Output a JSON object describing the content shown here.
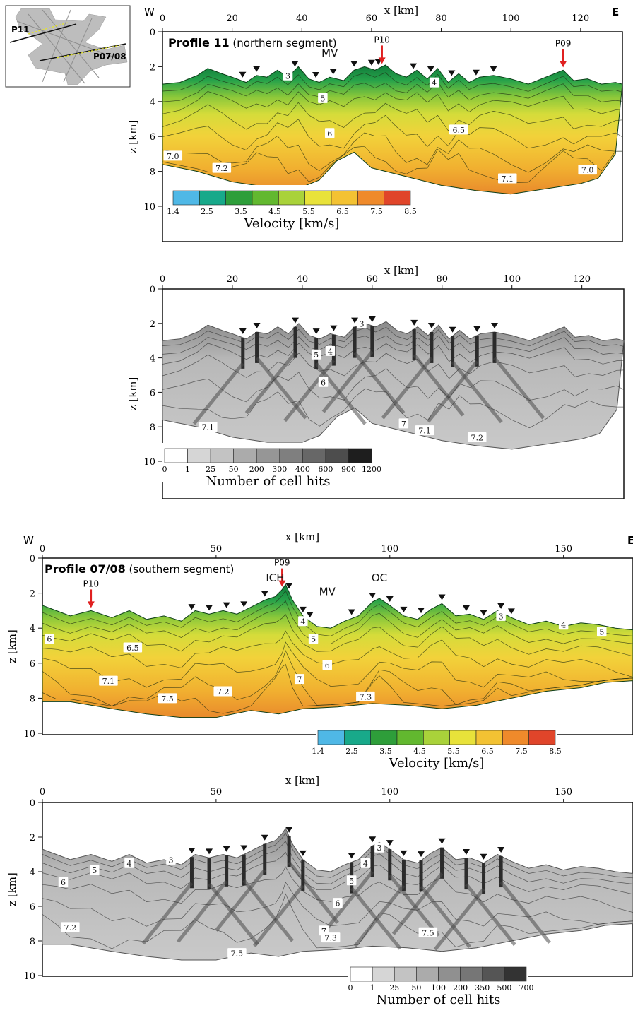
{
  "chart_data": [
    {
      "type": "heatmap",
      "name": "inset-map",
      "labels": [
        "P11",
        "P07/08"
      ]
    },
    {
      "type": "heatmap",
      "title": "Profile 11",
      "subtitle": "(northern segment)",
      "xlabel": "x [km]",
      "ylabel": "z [km]",
      "xlim": [
        0,
        132
      ],
      "ylim": [
        0,
        12
      ],
      "xticks": [
        0,
        20,
        40,
        60,
        80,
        100,
        120
      ],
      "yticks": [
        0,
        2,
        4,
        6,
        8,
        10
      ],
      "west_label": "W",
      "east_label": "E",
      "annotations": [
        "MV"
      ],
      "arrows": [
        {
          "label": "P10",
          "x": 63
        },
        {
          "label": "P09",
          "x": 115
        }
      ],
      "stations_x": [
        23,
        27,
        38,
        44,
        49,
        55,
        60,
        62,
        72,
        77,
        83,
        90,
        95
      ],
      "topography": {
        "x": [
          0,
          5,
          10,
          13,
          17,
          20,
          24,
          27,
          30,
          33,
          36,
          39,
          42,
          45,
          48,
          52,
          55,
          58,
          61,
          64,
          67,
          70,
          73,
          76,
          79,
          82,
          85,
          88,
          91,
          95,
          100,
          105,
          110,
          115,
          118,
          122,
          126,
          130,
          132
        ],
        "z": [
          3.0,
          2.9,
          2.5,
          2.1,
          2.4,
          2.6,
          2.9,
          2.5,
          2.6,
          2.2,
          2.6,
          2.0,
          2.7,
          2.9,
          2.6,
          2.8,
          2.2,
          2.0,
          2.2,
          1.9,
          2.4,
          2.6,
          2.2,
          2.7,
          2.1,
          2.9,
          2.4,
          2.9,
          2.6,
          2.5,
          2.7,
          3.0,
          2.6,
          2.2,
          2.8,
          2.7,
          3.0,
          2.9,
          3.0
        ]
      },
      "bottom": {
        "x": [
          0,
          10,
          20,
          30,
          40,
          45,
          50,
          55,
          60,
          70,
          80,
          90,
          100,
          110,
          120,
          125,
          130
        ],
        "z": [
          7.6,
          8.0,
          8.6,
          8.9,
          8.9,
          8.5,
          7.4,
          6.9,
          7.8,
          8.3,
          8.8,
          9.1,
          9.3,
          9.0,
          8.7,
          8.4,
          7.0
        ]
      },
      "contour_labels": [
        {
          "text": "3",
          "x": 36,
          "z": 2.5
        },
        {
          "text": "4",
          "x": 78,
          "z": 2.9
        },
        {
          "text": "5",
          "x": 46,
          "z": 3.8
        },
        {
          "text": "6",
          "x": 48,
          "z": 5.8
        },
        {
          "text": "6.5",
          "x": 85,
          "z": 5.6
        },
        {
          "text": "7.0",
          "x": 3,
          "z": 7.1
        },
        {
          "text": "7.2",
          "x": 17,
          "z": 7.8
        },
        {
          "text": "7.1",
          "x": 99,
          "z": 8.4
        },
        {
          "text": "7.0",
          "x": 122,
          "z": 7.9
        }
      ],
      "colorbar": {
        "label": "Velocity [km/s]",
        "ticks": [
          1.4,
          2.5,
          3.5,
          4.5,
          5.5,
          6.5,
          7.5,
          8.5
        ],
        "colors": [
          "#4fb8e6",
          "#18a98a",
          "#2e9e3a",
          "#62b82f",
          "#a9d23a",
          "#e8e23a",
          "#f3c233",
          "#ef8a2b",
          "#e0452a"
        ]
      }
    },
    {
      "type": "heatmap",
      "title": "",
      "xlabel": "x [km]",
      "ylabel": "z [km]",
      "xlim": [
        0,
        132
      ],
      "ylim": [
        0,
        12
      ],
      "xticks": [
        0,
        20,
        40,
        60,
        80,
        100,
        120
      ],
      "yticks": [
        0,
        2,
        4,
        6,
        8,
        10
      ],
      "stations_x": [
        23,
        27,
        38,
        44,
        49,
        55,
        60,
        72,
        77,
        83,
        90,
        95
      ],
      "contour_labels": [
        {
          "text": "3",
          "x": 57,
          "z": 2.0
        },
        {
          "text": "5",
          "x": 44,
          "z": 3.8
        },
        {
          "text": "4",
          "x": 48,
          "z": 3.6
        },
        {
          "text": "6",
          "x": 46,
          "z": 5.4
        },
        {
          "text": "7.1",
          "x": 13,
          "z": 8.0
        },
        {
          "text": "7",
          "x": 69,
          "z": 7.8
        },
        {
          "text": "7.1",
          "x": 75,
          "z": 8.2
        },
        {
          "text": "7.2",
          "x": 90,
          "z": 8.6
        }
      ],
      "colorbar": {
        "label": "Number of cell hits",
        "ticks": [
          "0",
          "1",
          "25",
          "50",
          "200",
          "300",
          "400",
          "600",
          "900",
          "1200"
        ],
        "colors": [
          "#ffffff",
          "#d6d6d6",
          "#c3c3c3",
          "#ababab",
          "#969696",
          "#7f7f7f",
          "#676767",
          "#4d4d4d",
          "#1e1e1e"
        ]
      }
    },
    {
      "type": "heatmap",
      "title": "Profile 07/08",
      "subtitle": "(southern segment)",
      "xlabel": "x [km]",
      "ylabel": "z [km]",
      "xlim": [
        0,
        170
      ],
      "ylim": [
        0,
        10
      ],
      "xticks": [
        0,
        50,
        100,
        150
      ],
      "yticks": [
        0,
        2,
        4,
        6,
        8,
        10
      ],
      "west_label": "W",
      "east_label": "E",
      "annotations": [
        "ICH",
        "MV",
        "OC"
      ],
      "arrows": [
        {
          "label": "P10",
          "x": 14
        },
        {
          "label": "P09",
          "x": 69
        }
      ],
      "stations_x": [
        43,
        48,
        53,
        58,
        64,
        71,
        75,
        77,
        89,
        95,
        100,
        104,
        109,
        115,
        122,
        127,
        132,
        135
      ],
      "topography": {
        "x": [
          0,
          4,
          8,
          14,
          20,
          25,
          30,
          35,
          40,
          44,
          48,
          52,
          56,
          60,
          64,
          67,
          69,
          70,
          72,
          75,
          79,
          83,
          87,
          91,
          95,
          97,
          100,
          104,
          108,
          112,
          115,
          119,
          123,
          127,
          131,
          135,
          140,
          145,
          150,
          155,
          160,
          165,
          170
        ],
        "z": [
          2.7,
          3.0,
          3.3,
          3.0,
          3.4,
          3.0,
          3.5,
          3.3,
          3.6,
          3.0,
          3.2,
          3.0,
          3.2,
          2.8,
          2.4,
          2.2,
          1.8,
          1.5,
          2.4,
          3.3,
          3.9,
          4.0,
          3.6,
          3.3,
          2.5,
          2.3,
          2.7,
          3.3,
          3.5,
          2.9,
          2.6,
          3.3,
          3.2,
          3.5,
          3.0,
          3.4,
          3.8,
          3.6,
          3.9,
          3.7,
          3.8,
          4.0,
          4.1
        ]
      },
      "bottom": {
        "x": [
          8,
          20,
          30,
          40,
          50,
          60,
          68,
          75,
          85,
          95,
          105,
          115,
          125,
          135,
          145,
          155,
          162,
          170
        ],
        "z": [
          8.2,
          8.6,
          8.9,
          9.1,
          9.1,
          8.7,
          8.9,
          8.6,
          8.5,
          8.3,
          8.4,
          8.6,
          8.4,
          8.0,
          7.6,
          7.4,
          7.1,
          7.0
        ]
      },
      "contour_labels": [
        {
          "text": "6",
          "x": 2,
          "z": 4.6
        },
        {
          "text": "6.5",
          "x": 26,
          "z": 5.1
        },
        {
          "text": "4",
          "x": 75,
          "z": 3.6
        },
        {
          "text": "5",
          "x": 78,
          "z": 4.6
        },
        {
          "text": "6",
          "x": 82,
          "z": 6.1
        },
        {
          "text": "7",
          "x": 74,
          "z": 6.9
        },
        {
          "text": "7.1",
          "x": 19,
          "z": 7.0
        },
        {
          "text": "7.2",
          "x": 52,
          "z": 7.6
        },
        {
          "text": "7.5",
          "x": 36,
          "z": 8.0
        },
        {
          "text": "7.3",
          "x": 93,
          "z": 7.9
        },
        {
          "text": "3",
          "x": 132,
          "z": 3.3
        },
        {
          "text": "4",
          "x": 150,
          "z": 3.8
        },
        {
          "text": "5",
          "x": 161,
          "z": 4.2
        }
      ],
      "colorbar": {
        "label": "Velocity [km/s]",
        "ticks": [
          1.4,
          2.5,
          3.5,
          4.5,
          5.5,
          6.5,
          7.5,
          8.5
        ],
        "colors": [
          "#4fb8e6",
          "#18a98a",
          "#2e9e3a",
          "#62b82f",
          "#a9d23a",
          "#e8e23a",
          "#f3c233",
          "#ef8a2b",
          "#e0452a"
        ]
      }
    },
    {
      "type": "heatmap",
      "title": "",
      "xlabel": "x [km]",
      "ylabel": "z [km]",
      "xlim": [
        0,
        170
      ],
      "ylim": [
        0,
        10
      ],
      "xticks": [
        0,
        50,
        100,
        150
      ],
      "yticks": [
        0,
        2,
        4,
        6,
        8,
        10
      ],
      "stations_x": [
        43,
        48,
        53,
        58,
        64,
        71,
        75,
        89,
        95,
        100,
        104,
        109,
        115,
        122,
        127,
        132
      ],
      "contour_labels": [
        {
          "text": "4",
          "x": 25,
          "z": 3.5
        },
        {
          "text": "5",
          "x": 15,
          "z": 3.9
        },
        {
          "text": "3",
          "x": 37,
          "z": 3.3
        },
        {
          "text": "6",
          "x": 6,
          "z": 4.6
        },
        {
          "text": "7.2",
          "x": 8,
          "z": 7.2
        },
        {
          "text": "7.5",
          "x": 56,
          "z": 8.7
        },
        {
          "text": "4",
          "x": 93,
          "z": 3.5
        },
        {
          "text": "5",
          "x": 89,
          "z": 4.5
        },
        {
          "text": "3",
          "x": 97,
          "z": 2.6
        },
        {
          "text": "6",
          "x": 85,
          "z": 5.8
        },
        {
          "text": "7",
          "x": 81,
          "z": 7.4
        },
        {
          "text": "7.3",
          "x": 83,
          "z": 7.8
        },
        {
          "text": "7.5",
          "x": 111,
          "z": 7.5
        }
      ],
      "colorbar": {
        "label": "Number of cell hits",
        "ticks": [
          "0",
          "1",
          "25",
          "50",
          "100",
          "200",
          "350",
          "500",
          "700"
        ],
        "colors": [
          "#ffffff",
          "#d6d6d6",
          "#c3c3c3",
          "#ababab",
          "#909090",
          "#767676",
          "#555555",
          "#333333"
        ]
      }
    }
  ]
}
